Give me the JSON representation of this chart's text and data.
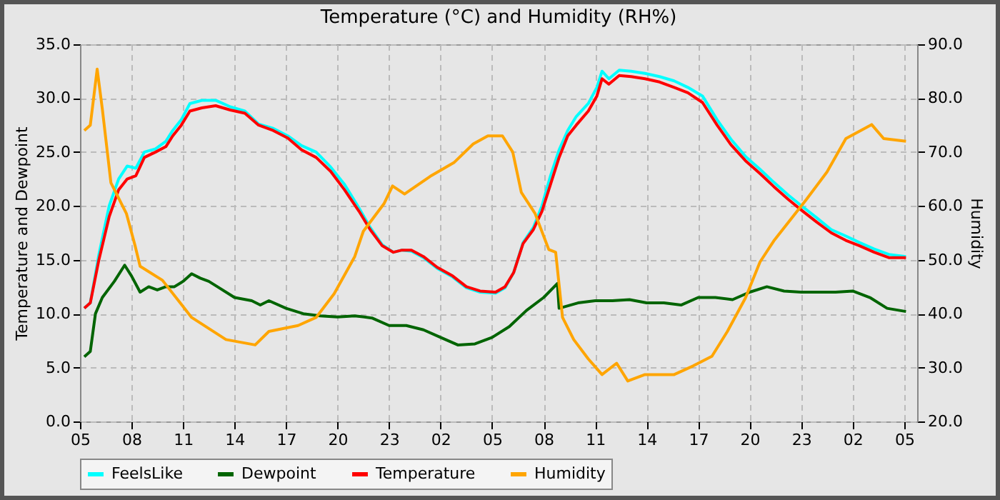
{
  "chart_data": {
    "type": "line",
    "title": "Temperature (°C) and Humidity (RH%)",
    "ylabel": "Temperature and Dewpoint",
    "y2label": "Humidity",
    "xlim": [
      "--06-01T05:00",
      "--06-03T05:45"
    ],
    "ylim": [
      0,
      35
    ],
    "y2lim": [
      20,
      90
    ],
    "xticks": [
      {
        "value": "--06-01T05:00",
        "label": "05"
      },
      {
        "value": "--06-01T08:00",
        "label": "08"
      },
      {
        "value": "--06-01T11:00",
        "label": "11"
      },
      {
        "value": "--06-01T14:00",
        "label": "14"
      },
      {
        "value": "--06-01T17:00",
        "label": "17"
      },
      {
        "value": "--06-01T20:00",
        "label": "20"
      },
      {
        "value": "--06-01T23:00",
        "label": "23"
      },
      {
        "value": "--06-02T02:00",
        "label": "02"
      },
      {
        "value": "--06-02T05:00",
        "label": "05"
      },
      {
        "value": "--06-02T08:00",
        "label": "08"
      },
      {
        "value": "--06-02T11:00",
        "label": "11"
      },
      {
        "value": "--06-02T14:00",
        "label": "14"
      },
      {
        "value": "--06-02T17:00",
        "label": "17"
      },
      {
        "value": "--06-02T20:00",
        "label": "20"
      },
      {
        "value": "--06-02T23:00",
        "label": "23"
      },
      {
        "value": "--06-03T02:00",
        "label": "02"
      },
      {
        "value": "--06-03T05:00",
        "label": "05"
      }
    ],
    "yticks": [
      {
        "value": 0,
        "label": "0.0"
      },
      {
        "value": 5,
        "label": "5.0"
      },
      {
        "value": 10,
        "label": "10.0"
      },
      {
        "value": 15,
        "label": "15.0"
      },
      {
        "value": 20,
        "label": "20.0"
      },
      {
        "value": 25,
        "label": "25.0"
      },
      {
        "value": 30,
        "label": "30.0"
      },
      {
        "value": 35,
        "label": "35.0"
      }
    ],
    "y2ticks": [
      {
        "value": 20,
        "label": "20.0"
      },
      {
        "value": 30,
        "label": "30.0"
      },
      {
        "value": 40,
        "label": "40.0"
      },
      {
        "value": 50,
        "label": "50.0"
      },
      {
        "value": 60,
        "label": "60.0"
      },
      {
        "value": 70,
        "label": "70.0"
      },
      {
        "value": 80,
        "label": "80.0"
      },
      {
        "value": 90,
        "label": "90.0"
      }
    ],
    "grid": true,
    "legend": "bottom",
    "line_style": "solid",
    "marker": "none",
    "x": [
      "--06-01T05:15",
      "--06-01T05:36",
      "--06-01T06:06",
      "--06-01T06:42",
      "--06-01T07:15",
      "--06-01T07:45",
      "--06-01T08:15",
      "--06-01T08:45",
      "--06-01T09:24",
      "--06-01T10:00",
      "--06-01T10:24",
      "--06-01T10:54",
      "--06-01T11:24",
      "--06-01T12:06",
      "--06-01T12:54",
      "--06-01T13:45",
      "--06-01T14:36",
      "--06-01T15:24",
      "--06-01T16:15",
      "--06-01T17:06",
      "--06-01T17:54",
      "--06-01T18:45",
      "--06-01T19:36",
      "--06-01T20:24",
      "--06-01T21:15",
      "--06-01T21:54",
      "--06-01T22:36",
      "--06-01T23:15",
      "--06-01T23:45",
      "--06-02T00:18",
      "--06-02T01:00",
      "--06-02T01:48",
      "--06-02T02:42",
      "--06-02T03:30",
      "--06-02T04:18",
      "--06-02T05:12",
      "--06-02T05:45",
      "--06-02T06:15",
      "--06-02T06:48",
      "--06-02T07:24",
      "--06-02T07:54",
      "--06-02T08:24",
      "--06-02T08:54",
      "--06-02T09:24",
      "--06-02T09:54",
      "--06-02T10:36",
      "--06-02T11:06",
      "--06-02T11:24",
      "--06-02T11:48",
      "--06-02T12:24",
      "--06-02T13:06",
      "--06-02T13:54",
      "--06-02T14:45",
      "--06-02T15:36",
      "--06-02T16:24",
      "--06-02T17:15",
      "--06-02T18:06",
      "--06-02T18:54",
      "--06-02T19:45",
      "--06-02T20:36",
      "--06-02T21:24",
      "--06-02T22:15",
      "--06-02T23:06",
      "--06-02T23:54",
      "--06-03T00:45",
      "--06-03T01:36",
      "--06-03T02:24",
      "--06-03T03:15",
      "--06-03T04:06",
      "--06-03T05:06"
    ],
    "series": [
      {
        "name": "FeelsLike",
        "color": "#00ffff",
        "values": [
          10.5,
          11,
          15.5,
          20,
          22.5,
          23.7,
          23.5,
          25,
          25.3,
          26,
          27,
          28,
          29.5,
          29.8,
          29.8,
          29.2,
          28.8,
          27.6,
          27.2,
          26.5,
          25.6,
          25,
          23.6,
          22,
          19.8,
          18,
          16.4,
          15.7,
          15.9,
          15.8,
          15.2,
          14.2,
          13.4,
          12.4,
          12,
          11.9,
          12.4,
          13.8,
          16.6,
          18,
          20,
          22.8,
          25.2,
          27,
          28.3,
          29.5,
          31,
          32.5,
          31.8,
          32.6,
          32.5,
          32.3,
          32,
          31.6,
          31,
          30.2,
          28,
          26.2,
          24.6,
          23.4,
          22.2,
          21,
          19.9,
          18.9,
          17.8,
          17.2,
          16.6,
          16,
          15.5,
          15.3
        ],
        "axis": "y"
      },
      {
        "name": "Dewpoint",
        "color": "#006400",
        "x": [
          "--06-01T05:15",
          "--06-01T05:36",
          "--06-01T05:54",
          "--06-01T06:18",
          "--06-01T07:00",
          "--06-01T07:36",
          "--06-01T08:00",
          "--06-01T08:30",
          "--06-01T09:00",
          "--06-01T09:30",
          "--06-01T10:00",
          "--06-01T10:30",
          "--06-01T11:00",
          "--06-01T11:30",
          "--06-01T12:00",
          "--06-01T12:30",
          "--06-01T13:00",
          "--06-01T14:00",
          "--06-01T15:00",
          "--06-01T15:30",
          "--06-01T16:00",
          "--06-01T17:00",
          "--06-01T18:00",
          "--06-01T19:00",
          "--06-01T20:00",
          "--06-01T21:00",
          "--06-01T22:00",
          "--06-01T23:00",
          "--06-02T00:00",
          "--06-02T01:00",
          "--06-02T02:00",
          "--06-02T03:00",
          "--06-02T04:00",
          "--06-02T05:00",
          "--06-02T06:00",
          "--06-02T07:00",
          "--06-02T08:00",
          "--06-02T08:48",
          "--06-02T08:54",
          "--06-02T10:00",
          "--06-02T11:00",
          "--06-02T12:00",
          "--06-02T13:00",
          "--06-02T14:00",
          "--06-02T15:00",
          "--06-02T16:00",
          "--06-02T17:00",
          "--06-02T18:00",
          "--06-02T19:00",
          "--06-02T20:00",
          "--06-02T21:00",
          "--06-02T22:00",
          "--06-02T23:00",
          "--06-03T00:00",
          "--06-03T01:00",
          "--06-03T02:00",
          "--06-03T03:00",
          "--06-03T04:00",
          "--06-03T05:06"
        ],
        "values": [
          6,
          6.5,
          10,
          11.5,
          13,
          14.5,
          13.5,
          12,
          12.5,
          12.2,
          12.5,
          12.5,
          13,
          13.7,
          13.3,
          13,
          12.5,
          11.5,
          11.2,
          10.8,
          11.2,
          10.5,
          10,
          9.8,
          9.7,
          9.8,
          9.6,
          8.9,
          8.9,
          8.5,
          7.8,
          7.1,
          7.2,
          7.8,
          8.8,
          10.3,
          11.5,
          12.8,
          10.5,
          11,
          11.2,
          11.2,
          11.3,
          11,
          11,
          10.8,
          11.5,
          11.5,
          11.3,
          12,
          12.5,
          12.1,
          12,
          12,
          12,
          12.1,
          11.5,
          10.5,
          10.2
        ],
        "axis": "y"
      },
      {
        "name": "Temperature",
        "color": "#ff0000",
        "values": [
          10.5,
          11,
          15,
          19,
          21.5,
          22.5,
          22.8,
          24.5,
          25,
          25.5,
          26.5,
          27.5,
          28.8,
          29.1,
          29.3,
          28.9,
          28.6,
          27.5,
          27,
          26.3,
          25.2,
          24.5,
          23.2,
          21.5,
          19.5,
          17.8,
          16.3,
          15.7,
          15.9,
          15.9,
          15.3,
          14.3,
          13.5,
          12.5,
          12.1,
          12,
          12.5,
          13.8,
          16.5,
          17.8,
          19.5,
          22,
          24.5,
          26.5,
          27.5,
          28.8,
          30.2,
          31.8,
          31.3,
          32.1,
          32,
          31.8,
          31.5,
          31,
          30.5,
          29.6,
          27.5,
          25.7,
          24.2,
          23,
          21.8,
          20.6,
          19.5,
          18.5,
          17.5,
          16.8,
          16.3,
          15.7,
          15.2,
          15.2
        ],
        "axis": "y"
      },
      {
        "name": "Humidity",
        "color": "#ffa500",
        "x": [
          "--06-01T05:15",
          "--06-01T05:36",
          "--06-01T06:00",
          "--06-01T06:18",
          "--06-01T06:48",
          "--06-01T07:42",
          "--06-01T08:12",
          "--06-01T08:30",
          "--06-01T09:48",
          "--06-01T11:30",
          "--06-01T13:30",
          "--06-01T15:12",
          "--06-01T16:00",
          "--06-01T17:42",
          "--06-01T18:45",
          "--06-01T19:48",
          "--06-01T21:00",
          "--06-01T21:30",
          "--06-01T22:42",
          "--06-01T23:12",
          "--06-01T23:54",
          "--06-02T01:24",
          "--06-02T02:48",
          "--06-02T03:54",
          "--06-02T04:45",
          "--06-02T05:36",
          "--06-02T06:12",
          "--06-02T06:42",
          "--06-02T07:30",
          "--06-02T08:18",
          "--06-02T08:42",
          "--06-02T09:06",
          "--06-02T09:45",
          "--06-02T10:36",
          "--06-02T11:24",
          "--06-02T12:15",
          "--06-02T12:54",
          "--06-02T13:54",
          "--06-02T15:36",
          "--06-02T16:42",
          "--06-02T17:48",
          "--06-02T18:42",
          "--06-02T19:45",
          "--06-02T20:36",
          "--06-02T21:24",
          "--06-02T23:18",
          "--06-03T00:30",
          "--06-03T01:36",
          "--06-03T03:06",
          "--06-03T03:48",
          "--06-03T05:06"
        ],
        "values": [
          74,
          75,
          85.4,
          78,
          64.3,
          58.6,
          52.7,
          48.8,
          46.2,
          39.3,
          35.2,
          34.2,
          36.7,
          37.8,
          39.3,
          43.7,
          50.6,
          55.3,
          60.4,
          63.7,
          62.2,
          65.5,
          68.1,
          71.5,
          73,
          73,
          70,
          62.5,
          58.6,
          51.9,
          51.4,
          39.3,
          35.2,
          31.6,
          28.7,
          30.8,
          27.5,
          28.7,
          28.7,
          30.3,
          32.1,
          36.7,
          42.9,
          49.6,
          53.5,
          61.2,
          66.3,
          72.5,
          75.1,
          72.5,
          72
        ],
        "axis": "y2"
      }
    ]
  }
}
